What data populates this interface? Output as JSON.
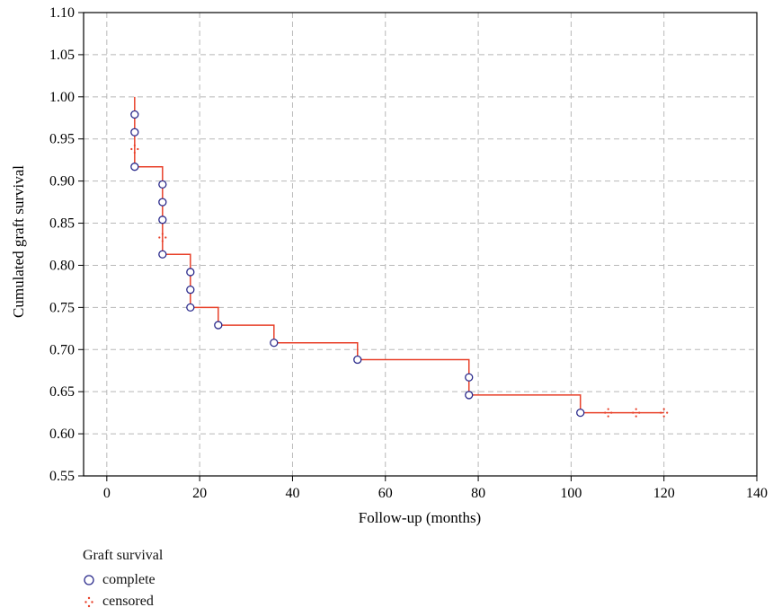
{
  "chart_data": {
    "type": "line",
    "title": "",
    "xlabel": "Follow-up (months)",
    "ylabel": "Cumulated graft survival",
    "xlim": [
      -5,
      140
    ],
    "ylim": [
      0.55,
      1.1
    ],
    "xticks": [
      0,
      20,
      40,
      60,
      80,
      100,
      120,
      140
    ],
    "yticks": [
      "0.55",
      "0.60",
      "0.65",
      "0.70",
      "0.75",
      "0.80",
      "0.85",
      "0.90",
      "0.95",
      "1.00",
      "1.05",
      "1.10"
    ],
    "grid": true,
    "colors": {
      "line": "#e8412a",
      "complete": "#2b2b8c",
      "censored": "#e8412a",
      "grid": "#b8b8b8"
    },
    "series": [
      {
        "name": "Graft survival",
        "step": [
          [
            6,
            1.0
          ],
          [
            6,
            0.917
          ],
          [
            12,
            0.917
          ],
          [
            12,
            0.813
          ],
          [
            18,
            0.813
          ],
          [
            18,
            0.75
          ],
          [
            24,
            0.75
          ],
          [
            24,
            0.729
          ],
          [
            36,
            0.729
          ],
          [
            36,
            0.708
          ],
          [
            54,
            0.708
          ],
          [
            54,
            0.688
          ],
          [
            78,
            0.688
          ],
          [
            78,
            0.646
          ],
          [
            102,
            0.646
          ],
          [
            102,
            0.625
          ],
          [
            120,
            0.625
          ]
        ]
      }
    ],
    "complete": [
      [
        6,
        0.979
      ],
      [
        6,
        0.958
      ],
      [
        6,
        0.917
      ],
      [
        12,
        0.896
      ],
      [
        12,
        0.875
      ],
      [
        12,
        0.854
      ],
      [
        12,
        0.813
      ],
      [
        18,
        0.792
      ],
      [
        18,
        0.771
      ],
      [
        18,
        0.75
      ],
      [
        24,
        0.729
      ],
      [
        36,
        0.708
      ],
      [
        54,
        0.688
      ],
      [
        78,
        0.667
      ],
      [
        78,
        0.646
      ],
      [
        102,
        0.625
      ]
    ],
    "censored": [
      [
        6,
        0.938
      ],
      [
        12,
        0.833
      ],
      [
        108,
        0.625
      ],
      [
        114,
        0.625
      ],
      [
        120,
        0.625
      ]
    ],
    "legend": {
      "title": "Graft survival",
      "placement": "bottom-left",
      "items": [
        {
          "label": "complete",
          "marker": "circle-icon"
        },
        {
          "label": "censored",
          "marker": "censored-cross-icon"
        }
      ]
    }
  }
}
